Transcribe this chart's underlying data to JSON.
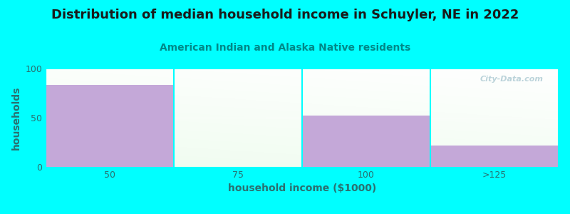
{
  "title": "Distribution of median household income in Schuyler, NE in 2022",
  "subtitle": "American Indian and Alaska Native residents",
  "xlabel": "household income ($1000)",
  "ylabel": "households",
  "background_color": "#00FFFF",
  "bar_color": "#c4a8d8",
  "categories": [
    "50",
    "75",
    "100",
    ">125"
  ],
  "values": [
    83,
    0,
    52,
    22
  ],
  "ylim": [
    0,
    100
  ],
  "yticks": [
    0,
    50,
    100
  ],
  "title_fontsize": 13,
  "subtitle_fontsize": 10,
  "axis_label_color": "#2a7070",
  "title_color": "#1a1a1a",
  "subtitle_color": "#008888",
  "watermark": "City-Data.com",
  "watermark_color": "#b0ccd4"
}
